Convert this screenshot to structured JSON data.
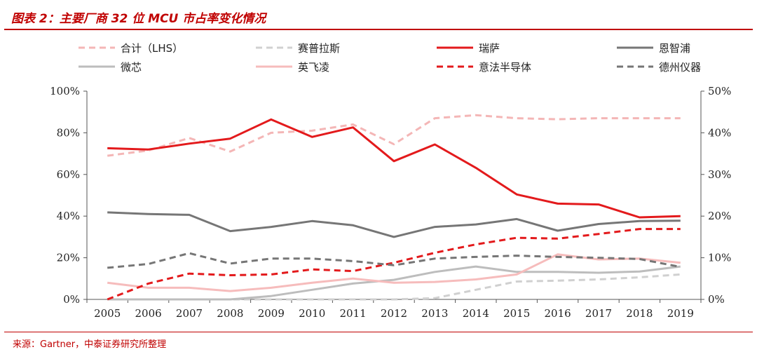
{
  "header": {
    "title": "图表 2：主要厂商 32 位 MCU 市占率变化情况"
  },
  "footer": {
    "source": "来源：Gartner，中泰证券研究所整理"
  },
  "chart_data": {
    "type": "line",
    "x": [
      "2005",
      "2006",
      "2007",
      "2008",
      "2009",
      "2010",
      "2011",
      "2012",
      "2013",
      "2014",
      "2015",
      "2016",
      "2017",
      "2018",
      "2019"
    ],
    "y_left": {
      "ylim": [
        0,
        100
      ],
      "ticks": [
        0,
        20,
        40,
        60,
        80,
        100
      ],
      "tick_labels": [
        "0%",
        "20%",
        "40%",
        "60%",
        "80%",
        "100%"
      ]
    },
    "y_right": {
      "ylim": [
        0,
        50
      ],
      "ticks": [
        0,
        10,
        20,
        30,
        40,
        50
      ],
      "tick_labels": [
        "0%",
        "10%",
        "20%",
        "30%",
        "40%",
        "50%"
      ]
    },
    "grid": false,
    "legend_position": "top",
    "series": [
      {
        "name": "合计（LHS）",
        "axis": "left",
        "color": "#f4b6b6",
        "style": "dashed",
        "width": 3,
        "values": [
          69,
          71.5,
          77.5,
          71,
          80,
          81,
          84,
          74.5,
          87,
          88.5,
          87,
          86.5,
          87,
          87,
          87
        ]
      },
      {
        "name": "赛普拉斯",
        "axis": "right",
        "color": "#d0d0d0",
        "style": "dashed",
        "width": 3,
        "values": [
          0,
          0,
          0,
          0,
          0,
          0,
          0,
          0,
          0.3,
          2.3,
          4.3,
          4.5,
          4.8,
          5.3,
          6
        ]
      },
      {
        "name": "瑞萨",
        "axis": "right",
        "color": "#e31a1c",
        "style": "solid",
        "width": 3,
        "values": [
          36.3,
          36,
          37.4,
          38.6,
          43.2,
          39,
          41.3,
          33.2,
          37.2,
          31.6,
          25.2,
          23,
          22.8,
          19.7,
          20
        ]
      },
      {
        "name": "恩智浦",
        "axis": "right",
        "color": "#767676",
        "style": "solid",
        "width": 3,
        "values": [
          20.9,
          20.5,
          20.3,
          16.4,
          17.4,
          18.8,
          17.8,
          15,
          17.4,
          18,
          19.3,
          16.5,
          18.1,
          18.8,
          18.9
        ]
      },
      {
        "name": "微芯",
        "axis": "right",
        "color": "#bdbdbd",
        "style": "solid",
        "width": 3,
        "values": [
          0,
          0,
          0,
          0,
          0.8,
          2.3,
          3.8,
          4.7,
          6.6,
          7.9,
          6.6,
          6.6,
          6.4,
          6.7,
          7.9
        ]
      },
      {
        "name": "英飞凌",
        "axis": "right",
        "color": "#f6bcbc",
        "style": "solid",
        "width": 3,
        "values": [
          4,
          2.8,
          2.8,
          2,
          2.8,
          4,
          5,
          4,
          4.2,
          4.8,
          6,
          10.8,
          9.6,
          9.8,
          8.8
        ]
      },
      {
        "name": "意法半导体",
        "axis": "right",
        "color": "#e31a1c",
        "style": "dashed",
        "width": 3,
        "values": [
          0,
          3.8,
          6.2,
          5.8,
          6,
          7.2,
          6.8,
          8.8,
          11.2,
          13.2,
          14.8,
          14.6,
          15.7,
          16.9,
          16.9
        ]
      },
      {
        "name": "德州仪器",
        "axis": "right",
        "color": "#767676",
        "style": "dashed",
        "width": 3,
        "values": [
          7.6,
          8.5,
          11.1,
          8.6,
          9.8,
          9.8,
          9.2,
          8.2,
          9.8,
          10.2,
          10.5,
          10.2,
          10,
          9.7,
          7.8
        ]
      }
    ]
  }
}
